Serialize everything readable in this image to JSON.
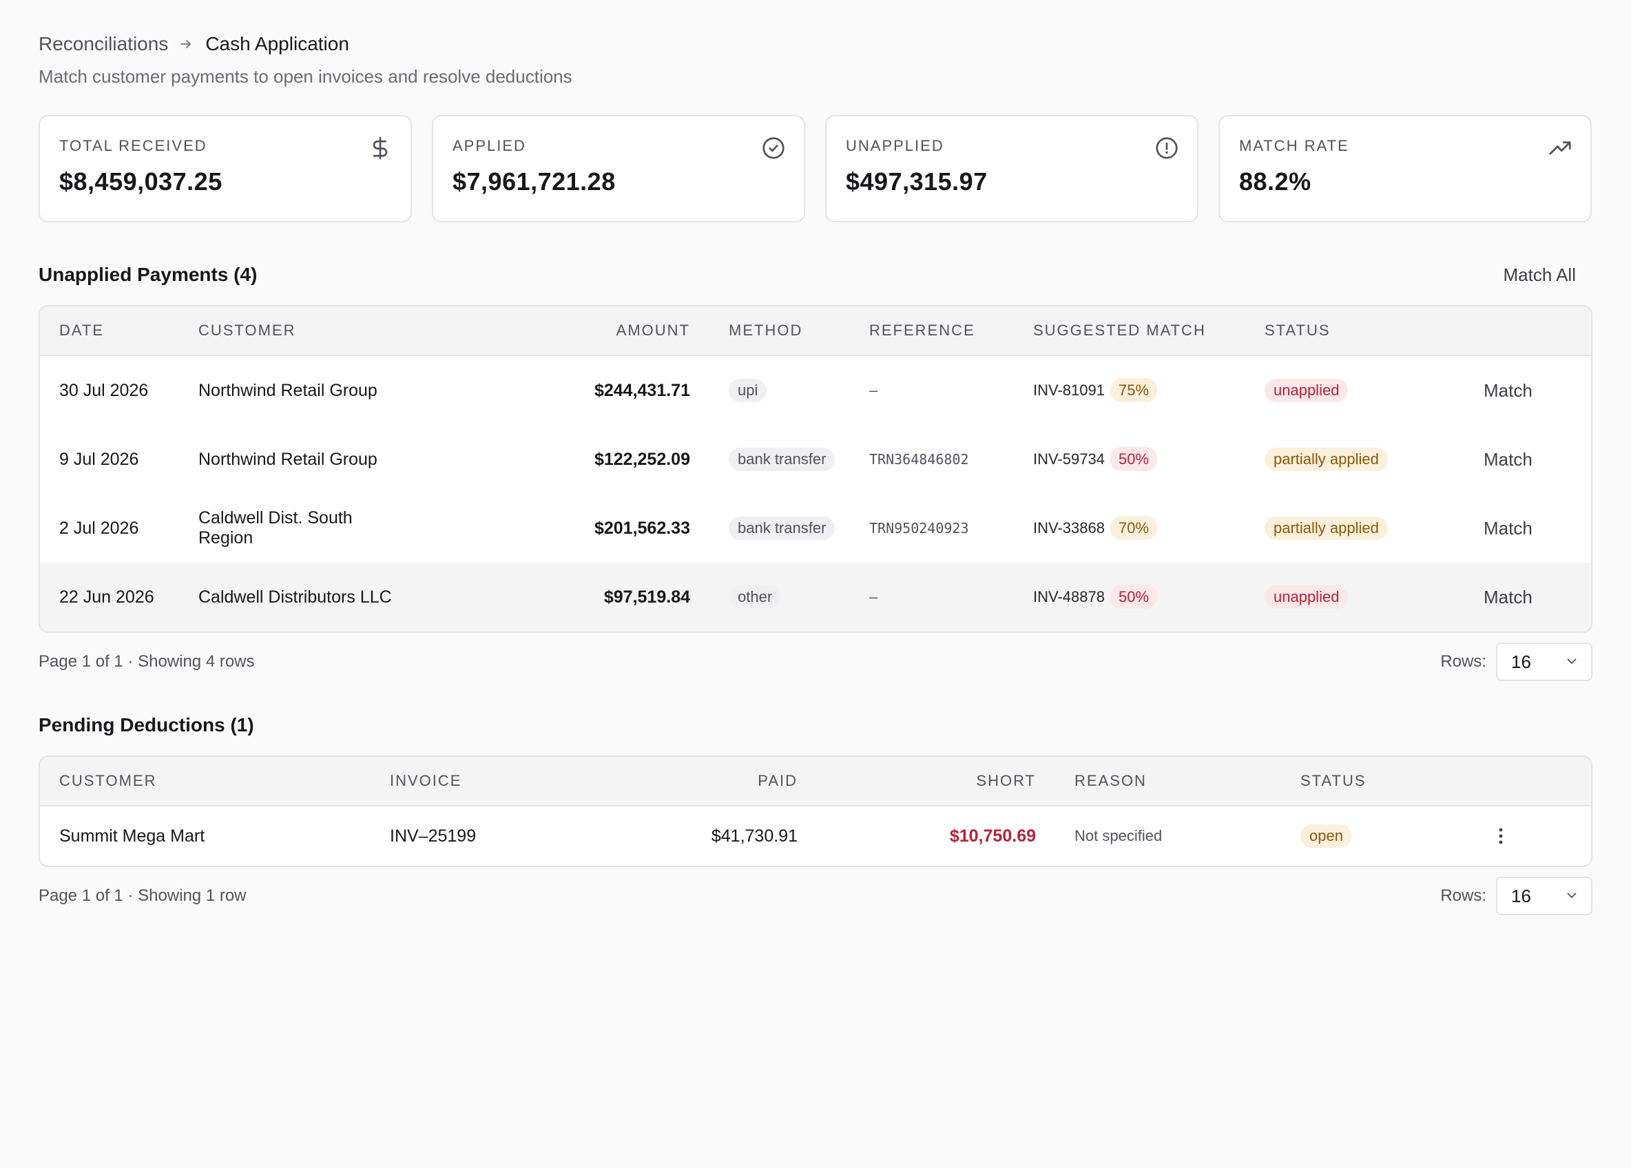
{
  "breadcrumb": {
    "parent": "Reconciliations",
    "current": "Cash Application"
  },
  "subtitle": "Match customer payments to open invoices and resolve deductions",
  "stats": [
    {
      "label": "TOTAL RECEIVED",
      "value": "$8,459,037.25",
      "icon": "dollar-icon"
    },
    {
      "label": "APPLIED",
      "value": "$7,961,721.28",
      "icon": "check-circle-icon"
    },
    {
      "label": "UNAPPLIED",
      "value": "$497,315.97",
      "icon": "alert-circle-icon"
    },
    {
      "label": "MATCH RATE",
      "value": "88.2%",
      "icon": "trending-up-icon"
    }
  ],
  "payments": {
    "title": "Unapplied Payments (4)",
    "match_all_label": "Match All",
    "columns": [
      "DATE",
      "CUSTOMER",
      "AMOUNT",
      "METHOD",
      "REFERENCE",
      "SUGGESTED MATCH",
      "STATUS"
    ],
    "rows": [
      {
        "date": "30 Jul 2026",
        "customer": "Northwind Retail Group",
        "amount": "$244,431.71",
        "method": "upi",
        "reference": "–",
        "invoice": "INV-81091",
        "confidence": "75%",
        "confidence_tone": "amber",
        "status": "unapplied",
        "status_tone": "red",
        "action": "Match"
      },
      {
        "date": "9 Jul 2026",
        "customer": "Northwind Retail Group",
        "amount": "$122,252.09",
        "method": "bank transfer",
        "reference": "TRN364846802",
        "invoice": "INV-59734",
        "confidence": "50%",
        "confidence_tone": "red",
        "status": "partially applied",
        "status_tone": "amber",
        "action": "Match"
      },
      {
        "date": "2 Jul 2026",
        "customer": "Caldwell Dist. South Region",
        "amount": "$201,562.33",
        "method": "bank transfer",
        "reference": "TRN950240923",
        "invoice": "INV-33868",
        "confidence": "70%",
        "confidence_tone": "amber",
        "status": "partially applied",
        "status_tone": "amber",
        "action": "Match"
      },
      {
        "date": "22 Jun 2026",
        "customer": "Caldwell Distributors LLC",
        "amount": "$97,519.84",
        "method": "other",
        "reference": "–",
        "invoice": "INV-48878",
        "confidence": "50%",
        "confidence_tone": "red",
        "status": "unapplied",
        "status_tone": "red",
        "action": "Match"
      }
    ],
    "pager_text": "Page 1 of 1  · Showing 4 rows",
    "rows_label": "Rows:",
    "rows_value": "16"
  },
  "deductions": {
    "title": "Pending Deductions (1)",
    "columns": [
      "CUSTOMER",
      "INVOICE",
      "PAID",
      "SHORT",
      "REASON",
      "STATUS"
    ],
    "rows": [
      {
        "customer": "Summit Mega Mart",
        "invoice": "INV–25199",
        "paid": "$41,730.91",
        "short": "$10,750.69",
        "reason": "Not specified",
        "status": "open"
      }
    ],
    "pager_text": "Page 1 of 1  · Showing 1 row",
    "rows_label": "Rows:",
    "rows_value": "16"
  },
  "colors": {
    "background": "#fafafb",
    "danger": "#b4233a",
    "danger_bg": "#fce7e9",
    "warning": "#8a5a0c",
    "warning_bg": "#faf0dc"
  }
}
